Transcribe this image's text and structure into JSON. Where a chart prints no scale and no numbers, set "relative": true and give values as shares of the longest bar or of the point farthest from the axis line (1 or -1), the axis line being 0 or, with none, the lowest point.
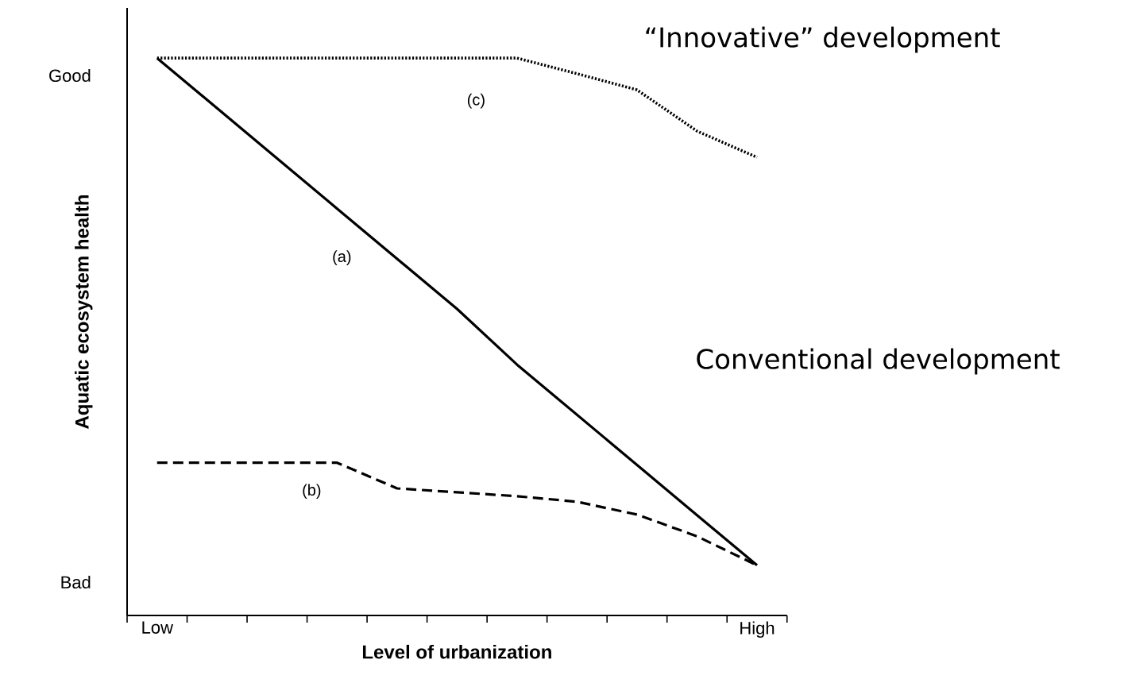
{
  "chart_data": {
    "type": "line",
    "xlabel": "Level of urbanization",
    "ylabel": "Aquatic ecosystem health",
    "categories": [
      "Low",
      null,
      null,
      null,
      null,
      null,
      null,
      null,
      null,
      null,
      "High"
    ],
    "relative": true,
    "marker": "none",
    "annotations": [
      "Good",
      "Bad",
      "“Innovative” development",
      "Conventional development"
    ],
    "series": [
      {
        "name": "(a)",
        "color": "#000000",
        "line_style": "solid",
        "values": [
          1,
          0.91,
          0.82,
          0.73,
          0.64,
          0.55,
          0.45,
          0.36,
          0.27,
          0.18,
          0.09
        ]
      },
      {
        "name": "(b)",
        "color": "#000000",
        "line_style": "dashed",
        "values": [
          0.274,
          0.274,
          0.274,
          0.274,
          0.228,
          0.221,
          0.214,
          0.204,
          0.181,
          0.142,
          0.09
        ]
      },
      {
        "name": "(c)",
        "color": "#000000",
        "line_style": "dotted",
        "values": [
          1,
          1,
          1,
          1,
          1,
          1,
          1,
          0.972,
          0.943,
          0.869,
          0.822
        ]
      }
    ]
  }
}
